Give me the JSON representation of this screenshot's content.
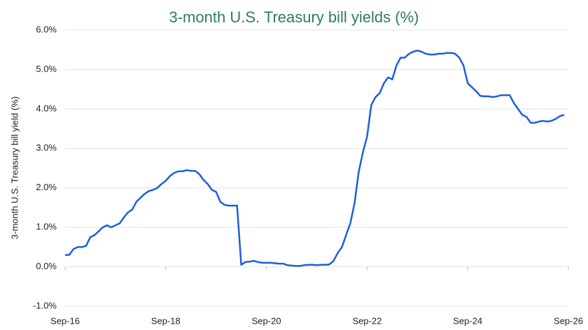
{
  "chart_data": {
    "type": "line",
    "title": "3-month U.S. Treasury bill yields (%)",
    "y_label": "3-month U.S. Treasury bill yield (%)",
    "x": [
      "2016-09",
      "2016-10",
      "2016-11",
      "2016-12",
      "2017-01",
      "2017-02",
      "2017-03",
      "2017-04",
      "2017-05",
      "2017-06",
      "2017-07",
      "2017-08",
      "2017-09",
      "2017-10",
      "2017-11",
      "2017-12",
      "2018-01",
      "2018-02",
      "2018-03",
      "2018-04",
      "2018-05",
      "2018-06",
      "2018-07",
      "2018-08",
      "2018-09",
      "2018-10",
      "2018-11",
      "2018-12",
      "2019-01",
      "2019-02",
      "2019-03",
      "2019-04",
      "2019-05",
      "2019-06",
      "2019-07",
      "2019-08",
      "2019-09",
      "2019-10",
      "2019-11",
      "2019-12",
      "2020-01",
      "2020-02",
      "2020-03",
      "2020-04",
      "2020-05",
      "2020-06",
      "2020-07",
      "2020-08",
      "2020-09",
      "2020-10",
      "2020-11",
      "2020-12",
      "2021-01",
      "2021-02",
      "2021-03",
      "2021-04",
      "2021-05",
      "2021-06",
      "2021-07",
      "2021-08",
      "2021-09",
      "2021-10",
      "2021-11",
      "2021-12",
      "2022-01",
      "2022-02",
      "2022-03",
      "2022-04",
      "2022-05",
      "2022-06",
      "2022-07",
      "2022-08",
      "2022-09",
      "2022-10",
      "2022-11",
      "2022-12",
      "2023-01",
      "2023-02",
      "2023-03",
      "2023-04",
      "2023-05",
      "2023-06",
      "2023-07",
      "2023-08",
      "2023-09",
      "2023-10",
      "2023-11",
      "2023-12",
      "2024-01",
      "2024-02",
      "2024-03",
      "2024-04",
      "2024-05",
      "2024-06",
      "2024-07",
      "2024-08",
      "2024-09",
      "2024-10",
      "2024-11",
      "2024-12",
      "2025-01",
      "2025-02",
      "2025-03",
      "2025-04",
      "2025-05",
      "2025-06",
      "2025-07",
      "2025-08",
      "2025-09",
      "2025-10",
      "2025-11",
      "2025-12",
      "2026-01",
      "2026-02",
      "2026-03",
      "2026-04",
      "2026-05",
      "2026-06",
      "2026-07",
      "2026-08"
    ],
    "series": [
      {
        "name": "3-month U.S. Treasury bill yield",
        "color": "#1c5fdc",
        "values": [
          0.3,
          0.3,
          0.45,
          0.5,
          0.5,
          0.53,
          0.75,
          0.8,
          0.9,
          1.0,
          1.05,
          1.0,
          1.05,
          1.1,
          1.25,
          1.38,
          1.45,
          1.65,
          1.75,
          1.85,
          1.92,
          1.95,
          2.0,
          2.1,
          2.18,
          2.3,
          2.38,
          2.42,
          2.42,
          2.45,
          2.43,
          2.43,
          2.35,
          2.2,
          2.1,
          1.95,
          1.9,
          1.65,
          1.57,
          1.55,
          1.55,
          1.55,
          0.05,
          0.12,
          0.13,
          0.15,
          0.12,
          0.1,
          0.1,
          0.1,
          0.09,
          0.08,
          0.08,
          0.04,
          0.03,
          0.02,
          0.02,
          0.04,
          0.05,
          0.05,
          0.04,
          0.05,
          0.05,
          0.06,
          0.15,
          0.35,
          0.5,
          0.8,
          1.1,
          1.6,
          2.4,
          2.9,
          3.3,
          4.1,
          4.3,
          4.4,
          4.65,
          4.8,
          4.75,
          5.1,
          5.3,
          5.3,
          5.4,
          5.45,
          5.48,
          5.45,
          5.4,
          5.38,
          5.38,
          5.4,
          5.4,
          5.42,
          5.42,
          5.4,
          5.3,
          5.1,
          4.65,
          4.55,
          4.45,
          4.33,
          4.32,
          4.32,
          4.3,
          4.32,
          4.35,
          4.35,
          4.35,
          4.15,
          4.0,
          3.85,
          3.8,
          3.65,
          3.65,
          3.68,
          3.7,
          3.68,
          3.7,
          3.75,
          3.82,
          3.85
        ]
      }
    ],
    "xlim": [
      "2016-09",
      "2026-09"
    ],
    "xticks": [
      {
        "value": "2016-09",
        "label": "Sep-16"
      },
      {
        "value": "2018-09",
        "label": "Sep-18"
      },
      {
        "value": "2020-09",
        "label": "Sep-20"
      },
      {
        "value": "2022-09",
        "label": "Sep-22"
      },
      {
        "value": "2024-09",
        "label": "Sep-24"
      },
      {
        "value": "2026-09",
        "label": "Sep-26"
      }
    ],
    "ylim": [
      -1,
      6
    ],
    "yticks": [
      {
        "value": -1,
        "label": "-1.0%"
      },
      {
        "value": 0,
        "label": "0.0%"
      },
      {
        "value": 1,
        "label": "1.0%"
      },
      {
        "value": 2,
        "label": "2.0%"
      },
      {
        "value": 3,
        "label": "3.0%"
      },
      {
        "value": 4,
        "label": "4.0%"
      },
      {
        "value": 5,
        "label": "5.0%"
      },
      {
        "value": 6,
        "label": "6.0%"
      }
    ],
    "grid": true
  }
}
